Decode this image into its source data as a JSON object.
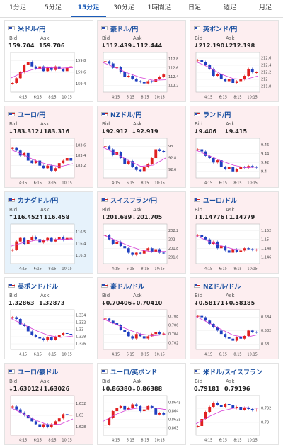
{
  "tabs": [
    "1分足",
    "5分足",
    "15分足",
    "30分足",
    "1時間足",
    "日足",
    "週足",
    "月足"
  ],
  "active_tab": 2,
  "labels": {
    "bid": "Bid",
    "ask": "Ask"
  },
  "time_labels": [
    "4:15",
    "6:15",
    "8:15",
    "10:15"
  ],
  "cards": [
    {
      "name": "米ドル/円",
      "bid": "159.704",
      "ask": "159.706",
      "bg": "#ffffff",
      "ylim": [
        159.3,
        159.9
      ],
      "yticks": [
        159.8,
        159.6,
        159.4
      ],
      "closes": [
        159.42,
        159.5,
        159.6,
        159.72,
        159.78,
        159.7,
        159.66,
        159.7,
        159.62,
        159.68,
        159.64,
        159.7,
        159.66,
        159.62,
        159.68,
        159.7
      ],
      "ma": [
        159.5,
        159.6,
        159.66,
        159.68,
        159.67,
        159.68
      ]
    },
    {
      "name": "豪ドル/円",
      "bid": "↓112.439",
      "ask": "↓112.444",
      "bg": "#fdeef0",
      "ylim": [
        112.1,
        112.9
      ],
      "yticks": [
        112.8,
        112.6,
        112.4,
        112.2
      ],
      "closes": [
        112.75,
        112.7,
        112.6,
        112.62,
        112.5,
        112.4,
        112.42,
        112.35,
        112.3,
        112.28,
        112.25,
        112.3,
        112.28,
        112.35,
        112.4,
        112.45
      ],
      "ma": [
        112.72,
        112.6,
        112.48,
        112.38,
        112.32,
        112.33
      ]
    },
    {
      "name": "英ポンド/円",
      "bid": "↓212.190",
      "ask": "↓212.198",
      "bg": "#fdeef0",
      "ylim": [
        211.7,
        212.7
      ],
      "yticks": [
        212.6,
        212.4,
        212.2,
        212,
        211.8
      ],
      "closes": [
        212.55,
        212.5,
        212.4,
        212.3,
        212.1,
        212.15,
        212.0,
        211.95,
        212.0,
        211.9,
        211.95,
        212.0,
        212.1,
        212.3,
        212.2,
        212.2
      ],
      "ma": [
        212.5,
        212.35,
        212.15,
        212.02,
        212.0,
        212.1
      ]
    },
    {
      "name": "ユーロ/円",
      "bid": "↓183.312",
      "ask": "↓183.316",
      "bg": "#fdeef0",
      "ylim": [
        183.0,
        183.7
      ],
      "yticks": [
        183.6,
        183.4,
        183.2
      ],
      "closes": [
        183.55,
        183.5,
        183.4,
        183.45,
        183.3,
        183.25,
        183.3,
        183.2,
        183.15,
        183.2,
        183.1,
        183.15,
        183.25,
        183.3,
        183.35,
        183.3
      ],
      "ma": [
        183.52,
        183.42,
        183.3,
        183.22,
        183.18,
        183.24
      ]
    },
    {
      "name": "NZドル/円",
      "bid": "↓92.912",
      "ask": "↓92.919",
      "bg": "#fdeef0",
      "ylim": [
        92.5,
        93.1
      ],
      "yticks": [
        93,
        92.8,
        92.6
      ],
      "closes": [
        93.0,
        92.95,
        92.85,
        92.9,
        92.8,
        92.7,
        92.75,
        92.65,
        92.6,
        92.58,
        92.65,
        92.7,
        92.8,
        92.95,
        92.92,
        92.91
      ],
      "ma": [
        92.98,
        92.88,
        92.76,
        92.66,
        92.68,
        92.8
      ]
    },
    {
      "name": "ランド/円",
      "bid": "↓9.406",
      "ask": "↓9.415",
      "bg": "#fdeef0",
      "ylim": [
        9.39,
        9.47
      ],
      "yticks": [
        9.46,
        9.44,
        9.42,
        9.4
      ],
      "closes": [
        9.45,
        9.445,
        9.435,
        9.43,
        9.42,
        9.425,
        9.41,
        9.405,
        9.41,
        9.4,
        9.405,
        9.41,
        9.408,
        9.412,
        9.41,
        9.409
      ],
      "ma": [
        9.448,
        9.436,
        9.424,
        9.414,
        9.408,
        9.41
      ]
    },
    {
      "name": "カナダドル/円",
      "bid": "↑116.452",
      "ask": "↑116.458",
      "bg": "#e6f2fb",
      "ylim": [
        116.25,
        116.55
      ],
      "yticks": [
        116.5,
        116.4,
        116.3
      ],
      "closes": [
        116.35,
        116.42,
        116.45,
        116.4,
        116.43,
        116.46,
        116.44,
        116.41,
        116.43,
        116.45,
        116.42,
        116.44,
        116.46,
        116.43,
        116.45,
        116.45
      ],
      "ma": [
        116.38,
        116.41,
        116.43,
        116.43,
        116.44,
        116.44
      ]
    },
    {
      "name": "スイスフラン/円",
      "bid": "↓201.689",
      "ask": "↓201.705",
      "bg": "#fdeef0",
      "ylim": [
        201.5,
        202.3
      ],
      "yticks": [
        202.2,
        202,
        201.8,
        201.6
      ],
      "closes": [
        202.1,
        202.0,
        201.9,
        201.95,
        201.85,
        201.8,
        201.7,
        201.65,
        201.7,
        201.68,
        201.75,
        201.8,
        201.72,
        201.78,
        201.7,
        201.69
      ],
      "ma": [
        202.1,
        201.98,
        201.86,
        201.76,
        201.72,
        201.73
      ]
    },
    {
      "name": "ユーロ/ドル",
      "bid": "↓1.14776",
      "ask": "↓1.14779",
      "bg": "#fdeef0",
      "ylim": [
        1.145,
        1.153
      ],
      "yticks": [
        1.152,
        1.15,
        1.148,
        1.146
      ],
      "closes": [
        1.151,
        1.1505,
        1.15,
        1.149,
        1.1495,
        1.148,
        1.1485,
        1.1475,
        1.147,
        1.1478,
        1.1472,
        1.1475,
        1.148,
        1.1478,
        1.1476,
        1.1477
      ],
      "ma": [
        1.1508,
        1.1496,
        1.1486,
        1.1478,
        1.1476,
        1.1477
      ]
    },
    {
      "name": "英ポンド/ドル",
      "bid": "1.32863",
      "ask": "1.32873",
      "bg": "#ffffff",
      "ylim": [
        1.325,
        1.335
      ],
      "yticks": [
        1.334,
        1.332,
        1.33,
        1.328,
        1.326
      ],
      "closes": [
        1.3335,
        1.333,
        1.3315,
        1.331,
        1.3295,
        1.3285,
        1.328,
        1.3275,
        1.327,
        1.3278,
        1.3272,
        1.328,
        1.3285,
        1.329,
        1.3288,
        1.3286
      ],
      "ma": [
        1.3332,
        1.3315,
        1.3298,
        1.3284,
        1.3278,
        1.3282
      ]
    },
    {
      "name": "豪ドル/ドル",
      "bid": "↓0.70406",
      "ask": "↓0.70410",
      "bg": "#fdeef0",
      "ylim": [
        0.701,
        0.709
      ],
      "yticks": [
        0.708,
        0.706,
        0.704,
        0.702
      ],
      "closes": [
        0.7075,
        0.707,
        0.7065,
        0.706,
        0.705,
        0.7045,
        0.7035,
        0.703,
        0.704,
        0.7035,
        0.703,
        0.7035,
        0.704,
        0.7045,
        0.704,
        0.7041
      ],
      "ma": [
        0.7074,
        0.7062,
        0.705,
        0.704,
        0.7036,
        0.7039
      ]
    },
    {
      "name": "NZドル/ドル",
      "bid": "↓0.58171",
      "ask": "↓0.58185",
      "bg": "#fdeef0",
      "ylim": [
        0.5795,
        0.5848
      ],
      "yticks": [
        0.584,
        0.582,
        0.58
      ],
      "closes": [
        0.5842,
        0.584,
        0.5835,
        0.583,
        0.5825,
        0.582,
        0.5815,
        0.581,
        0.5808,
        0.5805,
        0.581,
        0.5808,
        0.5812,
        0.582,
        0.5818,
        0.5817
      ],
      "ma": [
        0.5841,
        0.5832,
        0.5822,
        0.5813,
        0.581,
        0.5814
      ]
    },
    {
      "name": "ユーロ/豪ドル",
      "bid": "↓1.63012",
      "ask": "↓1.63026",
      "bg": "#fdeef0",
      "ylim": [
        1.627,
        1.633
      ],
      "yticks": [
        1.632,
        1.63,
        1.628
      ],
      "closes": [
        1.6315,
        1.631,
        1.6305,
        1.63,
        1.6295,
        1.629,
        1.6285,
        1.628,
        1.6285,
        1.628,
        1.6285,
        1.629,
        1.6295,
        1.6302,
        1.6301,
        1.6301
      ],
      "ma": [
        1.6313,
        1.6303,
        1.6292,
        1.6284,
        1.6285,
        1.6294
      ]
    },
    {
      "name": "ユーロ/英ポンド",
      "bid": "↓0.86380",
      "ask": "↓0.86388",
      "bg": "#ffffff",
      "ylim": [
        0.8627,
        0.8648
      ],
      "yticks": [
        0.8645,
        0.864,
        0.8635,
        0.863
      ],
      "closes": [
        0.8632,
        0.8636,
        0.864,
        0.8642,
        0.8643,
        0.8641,
        0.8642,
        0.8644,
        0.8643,
        0.864,
        0.8641,
        0.8643,
        0.8642,
        0.8638,
        0.8639,
        0.8638
      ],
      "ma": [
        0.8634,
        0.8638,
        0.8641,
        0.8642,
        0.8642,
        0.8641
      ]
    },
    {
      "name": "米ドル/スイスフラン",
      "bid": "0.79181",
      "ask": "0.79196",
      "bg": "#ffffff",
      "ylim": [
        0.7885,
        0.7935
      ],
      "yticks": [
        0.792,
        0.79
      ],
      "closes": [
        0.7895,
        0.7905,
        0.7915,
        0.7922,
        0.7928,
        0.7925,
        0.7922,
        0.7926,
        0.7924,
        0.792,
        0.7922,
        0.7918,
        0.7921,
        0.7919,
        0.7917,
        0.7918
      ],
      "ma": [
        0.7898,
        0.7908,
        0.7916,
        0.792,
        0.7921,
        0.792
      ]
    }
  ]
}
